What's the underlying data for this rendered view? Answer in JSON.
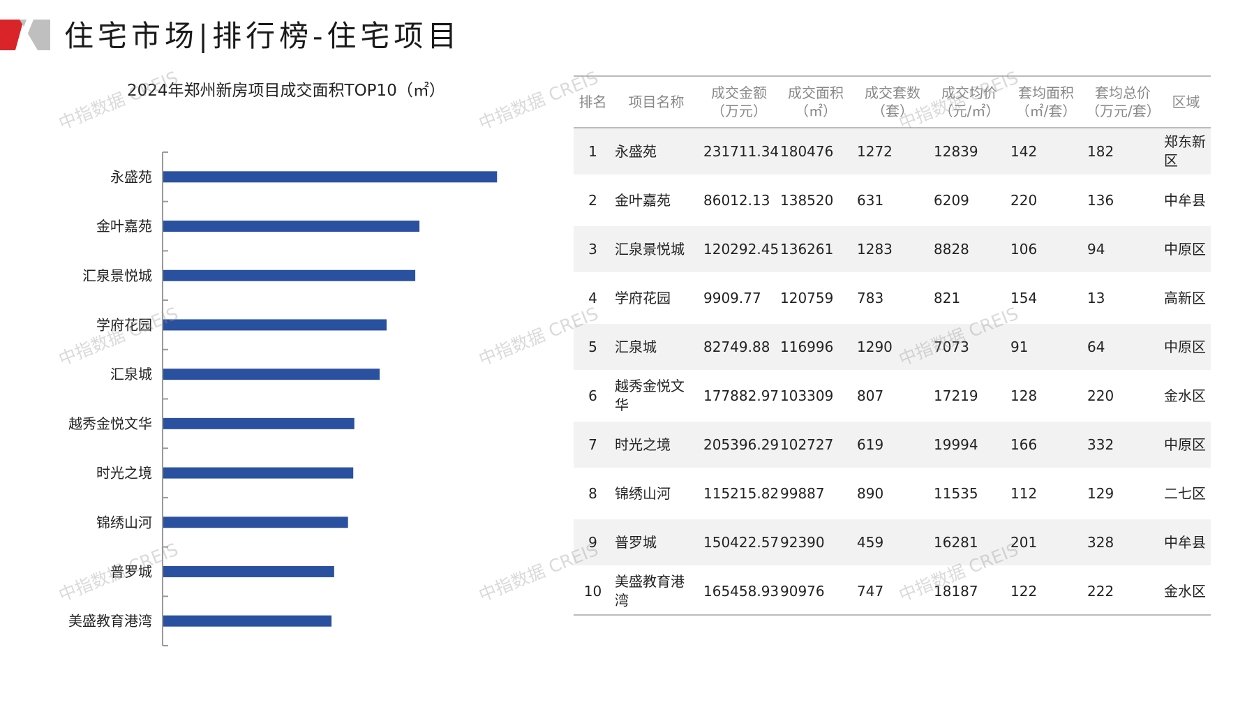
{
  "page_title": "住宅市场|排行榜-住宅项目",
  "watermark": "中指数据 CREIS",
  "colors": {
    "bar": "#2a50a0",
    "logo_red": "#d9252a",
    "logo_gray": "#bfbfbf"
  },
  "chart_data": {
    "type": "bar",
    "orientation": "horizontal",
    "title": "2024年郑州新房项目成交面积TOP10（㎡）",
    "categories": [
      "永盛苑",
      "金叶嘉苑",
      "汇泉景悦城",
      "学府花园",
      "汇泉城",
      "越秀金悦文华",
      "时光之境",
      "锦绣山河",
      "普罗城",
      "美盛教育港湾"
    ],
    "values": [
      180476,
      138520,
      136261,
      120759,
      116996,
      103309,
      102727,
      99887,
      92390,
      90976
    ],
    "xlim": [
      0,
      200000
    ],
    "grid": false,
    "legend": "none"
  },
  "table": {
    "headers": [
      {
        "line1": "排名",
        "line2": ""
      },
      {
        "line1": "项目名称",
        "line2": ""
      },
      {
        "line1": "成交金额",
        "line2": "（万元）"
      },
      {
        "line1": "成交面积",
        "line2": "（㎡）"
      },
      {
        "line1": "成交套数",
        "line2": "（套）"
      },
      {
        "line1": "成交均价",
        "line2": "（元/㎡）"
      },
      {
        "line1": "套均面积",
        "line2": "（㎡/套）"
      },
      {
        "line1": "套均总价",
        "line2": "（万元/套）"
      },
      {
        "line1": "区域",
        "line2": ""
      }
    ],
    "rows": [
      {
        "rank": "1",
        "name": "永盛苑",
        "amount": "231711.34",
        "area": "180476",
        "units": "1272",
        "price": "12839",
        "avg_area": "142",
        "avg_total": "182",
        "district": "郑东新区"
      },
      {
        "rank": "2",
        "name": "金叶嘉苑",
        "amount": "86012.13",
        "area": "138520",
        "units": "631",
        "price": "6209",
        "avg_area": "220",
        "avg_total": "136",
        "district": "中牟县"
      },
      {
        "rank": "3",
        "name": "汇泉景悦城",
        "amount": "120292.45",
        "area": "136261",
        "units": "1283",
        "price": "8828",
        "avg_area": "106",
        "avg_total": "94",
        "district": "中原区"
      },
      {
        "rank": "4",
        "name": "学府花园",
        "amount": "9909.77",
        "area": "120759",
        "units": "783",
        "price": "821",
        "avg_area": "154",
        "avg_total": "13",
        "district": "高新区"
      },
      {
        "rank": "5",
        "name": "汇泉城",
        "amount": "82749.88",
        "area": "116996",
        "units": "1290",
        "price": "7073",
        "avg_area": "91",
        "avg_total": "64",
        "district": "中原区"
      },
      {
        "rank": "6",
        "name": "越秀金悦文华",
        "amount": "177882.97",
        "area": "103309",
        "units": "807",
        "price": "17219",
        "avg_area": "128",
        "avg_total": "220",
        "district": "金水区"
      },
      {
        "rank": "7",
        "name": "时光之境",
        "amount": "205396.29",
        "area": "102727",
        "units": "619",
        "price": "19994",
        "avg_area": "166",
        "avg_total": "332",
        "district": "中原区"
      },
      {
        "rank": "8",
        "name": "锦绣山河",
        "amount": "115215.82",
        "area": "99887",
        "units": "890",
        "price": "11535",
        "avg_area": "112",
        "avg_total": "129",
        "district": "二七区"
      },
      {
        "rank": "9",
        "name": "普罗城",
        "amount": "150422.57",
        "area": "92390",
        "units": "459",
        "price": "16281",
        "avg_area": "201",
        "avg_total": "328",
        "district": "中牟县"
      },
      {
        "rank": "10",
        "name": "美盛教育港湾",
        "amount": "165458.93",
        "area": "90976",
        "units": "747",
        "price": "18187",
        "avg_area": "122",
        "avg_total": "222",
        "district": "金水区"
      }
    ]
  }
}
